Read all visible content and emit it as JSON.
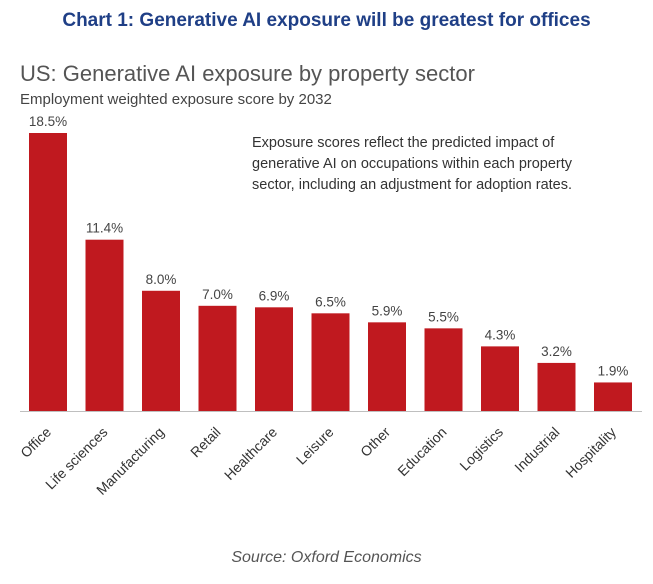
{
  "header": {
    "chart_heading": "Chart 1: Generative AI exposure will be greatest for offices"
  },
  "chart_data": {
    "type": "bar",
    "title": "US: Generative AI exposure by property sector",
    "subtitle": "Employment weighted exposure score by 2032",
    "annotation": "Exposure scores reflect the predicted impact of generative AI on occupations within each  property sector, including an adjustment for adoption rates.",
    "categories": [
      "Office",
      "Life sciences",
      "Manufacturing",
      "Retail",
      "Healthcare",
      "Leisure",
      "Other",
      "Education",
      "Logistics",
      "Industrial",
      "Hospitality"
    ],
    "values": [
      18.5,
      11.4,
      8.0,
      7.0,
      6.9,
      6.5,
      5.9,
      5.5,
      4.3,
      3.2,
      1.9
    ],
    "value_labels": [
      "18.5%",
      "11.4%",
      "8.0%",
      "7.0%",
      "6.9%",
      "6.5%",
      "5.9%",
      "5.5%",
      "4.3%",
      "3.2%",
      "1.9%"
    ],
    "ylim": [
      0,
      18.5
    ],
    "grid": false,
    "legend": "none",
    "bar_color": "#c0191f"
  },
  "footer": {
    "source": "Source: Oxford Economics"
  }
}
